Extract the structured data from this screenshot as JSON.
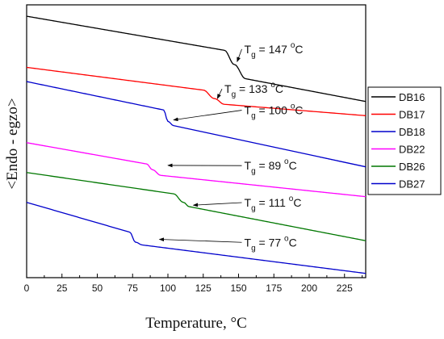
{
  "chart_data": {
    "type": "line",
    "xlabel": "Temperature, ",
    "xlabel_unit": "°C",
    "ylabel": "<Endo - egzo>",
    "xlim": [
      0,
      240
    ],
    "xticks": [
      0,
      25,
      50,
      75,
      100,
      125,
      150,
      175,
      200,
      225
    ],
    "y_scale": "arbitrary",
    "grid": false,
    "legend_position": "right",
    "series": [
      {
        "name": "DB16",
        "color": "#000000",
        "points": [
          [
            0,
            9.2
          ],
          [
            140,
            8.0
          ],
          [
            147,
            7.5
          ],
          [
            155,
            7.0
          ],
          [
            240,
            6.2
          ]
        ]
      },
      {
        "name": "DB17",
        "color": "#ff0000",
        "points": [
          [
            0,
            7.4
          ],
          [
            125,
            6.6
          ],
          [
            133,
            6.3
          ],
          [
            140,
            6.1
          ],
          [
            240,
            5.7
          ]
        ]
      },
      {
        "name": "DB18",
        "color": "#0000cc",
        "points": [
          [
            0,
            6.9
          ],
          [
            97,
            5.9
          ],
          [
            100,
            5.5
          ],
          [
            104,
            5.35
          ],
          [
            240,
            3.9
          ]
        ]
      },
      {
        "name": "DB22",
        "color": "#ff00ff",
        "points": [
          [
            0,
            4.75
          ],
          [
            85,
            4.0
          ],
          [
            89,
            3.8
          ],
          [
            95,
            3.6
          ],
          [
            240,
            2.85
          ]
        ]
      },
      {
        "name": "DB26",
        "color": "#007700",
        "points": [
          [
            0,
            3.7
          ],
          [
            104,
            2.95
          ],
          [
            111,
            2.65
          ],
          [
            115,
            2.5
          ],
          [
            240,
            1.3
          ]
        ]
      },
      {
        "name": "DB27",
        "color": "#0000cc",
        "points": [
          [
            0,
            2.65
          ],
          [
            73,
            1.6
          ],
          [
            77,
            1.25
          ],
          [
            82,
            1.15
          ],
          [
            240,
            0.15
          ]
        ]
      }
    ],
    "annotations": [
      {
        "label": "T",
        "sub": "g",
        "text": " = 147 ",
        "sup": "o",
        "unit": "C",
        "series": "DB16",
        "tx": 154,
        "ty": 7.9,
        "ax": 149,
        "ay": 7.6
      },
      {
        "label": "T",
        "sub": "g",
        "text": " = 133 ",
        "sup": "o",
        "unit": "C",
        "series": "DB17",
        "tx": 140,
        "ty": 6.5,
        "ax": 135,
        "ay": 6.3
      },
      {
        "label": "T",
        "sub": "g",
        "text": " = 100 ",
        "sup": "o",
        "unit": "C",
        "series": "DB18",
        "tx": 154,
        "ty": 5.75,
        "ax": 104,
        "ay": 5.55
      },
      {
        "label": "T",
        "sub": "g",
        "text": " = 89 ",
        "sup": "o",
        "unit": "C",
        "series": "DB22",
        "tx": 154,
        "ty": 3.8,
        "ax": 100,
        "ay": 3.95
      },
      {
        "label": "T",
        "sub": "g",
        "text": " = 111 ",
        "sup": "o",
        "unit": "C",
        "series": "DB26",
        "tx": 154,
        "ty": 2.5,
        "ax": 118,
        "ay": 2.55
      },
      {
        "label": "T",
        "sub": "g",
        "text": " = 77 ",
        "sup": "o",
        "unit": "C",
        "series": "DB27",
        "tx": 154,
        "ty": 1.1,
        "ax": 94,
        "ay": 1.35
      }
    ]
  }
}
